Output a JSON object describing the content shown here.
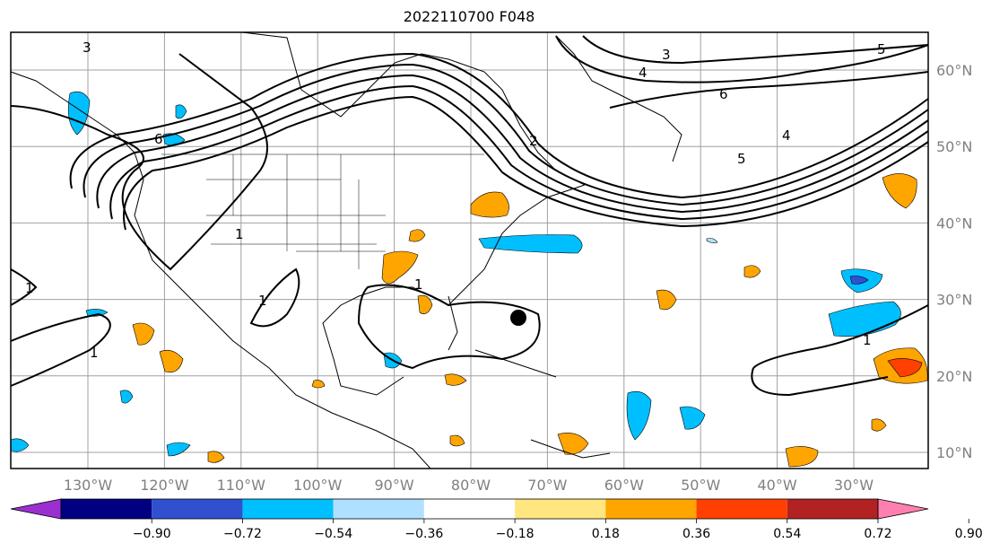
{
  "title": "2022110700 F048",
  "map": {
    "lon_ticks": [
      "130°W",
      "120°W",
      "110°W",
      "100°W",
      "90°W",
      "80°W",
      "70°W",
      "60°W",
      "50°W",
      "40°W",
      "30°W"
    ],
    "lat_ticks": [
      "60°N",
      "50°N",
      "40°N",
      "30°N",
      "20°N",
      "10°N"
    ],
    "marker": "storm-center-dot"
  },
  "contour_labels": [
    "5",
    "3",
    "4",
    "6",
    "6",
    "5",
    "4",
    "3",
    "2",
    "1",
    "1",
    "1",
    "1",
    "1",
    "1"
  ],
  "colorbar": {
    "labels": [
      "−0.90",
      "−0.72",
      "−0.54",
      "−0.36",
      "−0.18",
      "0.18",
      "0.36",
      "0.54",
      "0.72",
      "0.90"
    ],
    "colors": [
      "#9b30d0",
      "#000080",
      "#3050d0",
      "#00bfff",
      "#b0e0ff",
      "#ffffff",
      "#ffe680",
      "#ffa500",
      "#ff4000",
      "#b22222",
      "#ff80b0"
    ]
  }
}
